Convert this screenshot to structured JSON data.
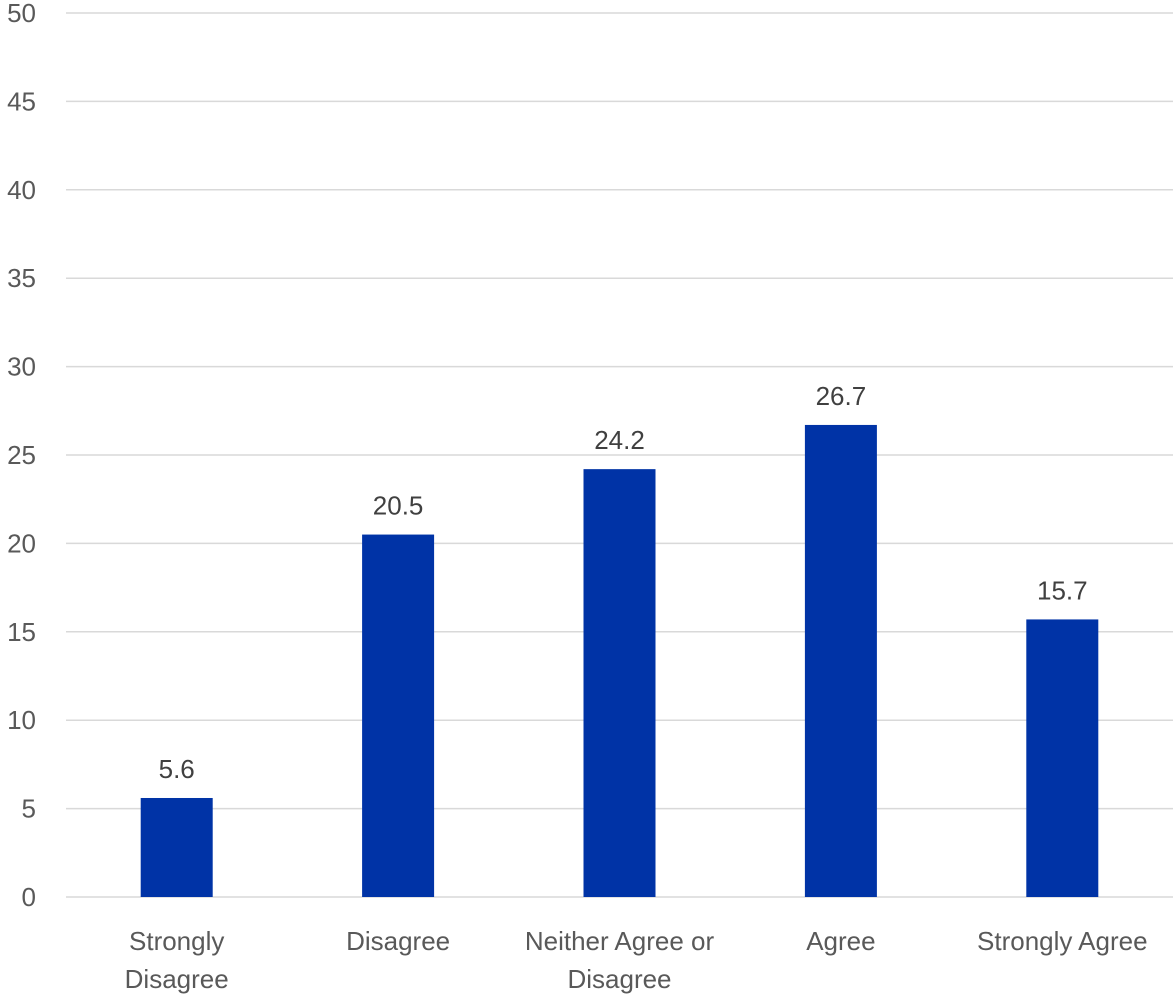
{
  "chart_data": {
    "type": "bar",
    "categories": [
      [
        "Strongly",
        "Disagree"
      ],
      [
        "Disagree"
      ],
      [
        "Neither Agree or",
        "Disagree"
      ],
      [
        "Agree"
      ],
      [
        "Strongly Agree"
      ]
    ],
    "values": [
      5.6,
      20.5,
      24.2,
      26.7,
      15.7
    ],
    "value_labels": [
      "5.6",
      "20.5",
      "24.2",
      "26.7",
      "15.7"
    ],
    "yticks": [
      0,
      5,
      10,
      15,
      20,
      25,
      30,
      35,
      40,
      45,
      50
    ],
    "ylim": [
      0,
      50
    ],
    "grid": true,
    "legend": "none",
    "title": "",
    "xlabel": "",
    "ylabel": "",
    "colors": {
      "bar": "#0033a6"
    }
  }
}
